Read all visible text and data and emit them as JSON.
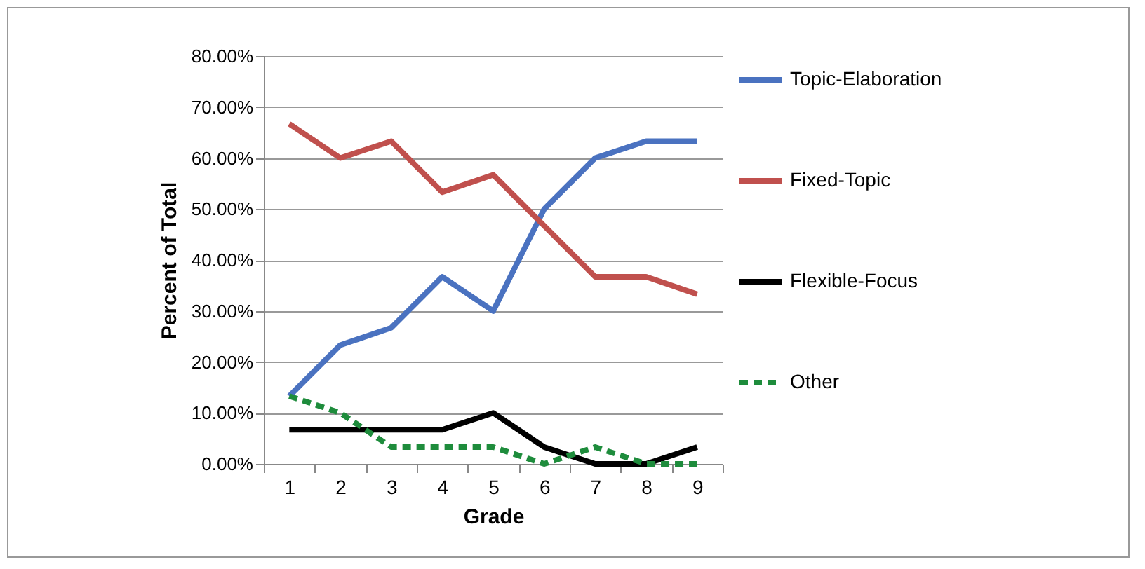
{
  "chart_data": {
    "type": "line",
    "xlabel": "Grade",
    "ylabel": "Percent of Total",
    "categories": [
      "1",
      "2",
      "3",
      "4",
      "5",
      "6",
      "7",
      "8",
      "9"
    ],
    "series": [
      {
        "name": "Topic-Elaboration",
        "color": "#4a72c0",
        "line_style": "solid",
        "values": [
          13.3,
          23.3,
          26.7,
          36.7,
          30,
          50,
          60,
          63.3,
          63.3
        ]
      },
      {
        "name": "Fixed-Topic",
        "color": "#c0504d",
        "line_style": "solid",
        "values": [
          66.7,
          60,
          63.3,
          53.3,
          56.7,
          46.7,
          36.7,
          36.7,
          33.3
        ]
      },
      {
        "name": "Flexible-Focus",
        "color": "#000000",
        "line_style": "solid",
        "values": [
          6.7,
          6.7,
          6.7,
          6.7,
          10,
          3.3,
          0,
          0,
          3.3
        ]
      },
      {
        "name": "Other",
        "color": "#1e8c3c",
        "line_style": "dashed",
        "values": [
          13.3,
          10,
          3.3,
          3.3,
          3.3,
          0,
          3.3,
          0,
          0
        ]
      }
    ],
    "ylim": [
      0,
      80
    ],
    "yticks": [
      {
        "value": 0,
        "label": "0.00%"
      },
      {
        "value": 10,
        "label": "10.00%"
      },
      {
        "value": 20,
        "label": "20.00%"
      },
      {
        "value": 30,
        "label": "30.00%"
      },
      {
        "value": 40,
        "label": "40.00%"
      },
      {
        "value": 50,
        "label": "50.00%"
      },
      {
        "value": 60,
        "label": "60.00%"
      },
      {
        "value": 70,
        "label": "70.00%"
      },
      {
        "value": 80,
        "label": "80.00%"
      }
    ],
    "grid": "y",
    "legend": "right",
    "marker": "none"
  }
}
